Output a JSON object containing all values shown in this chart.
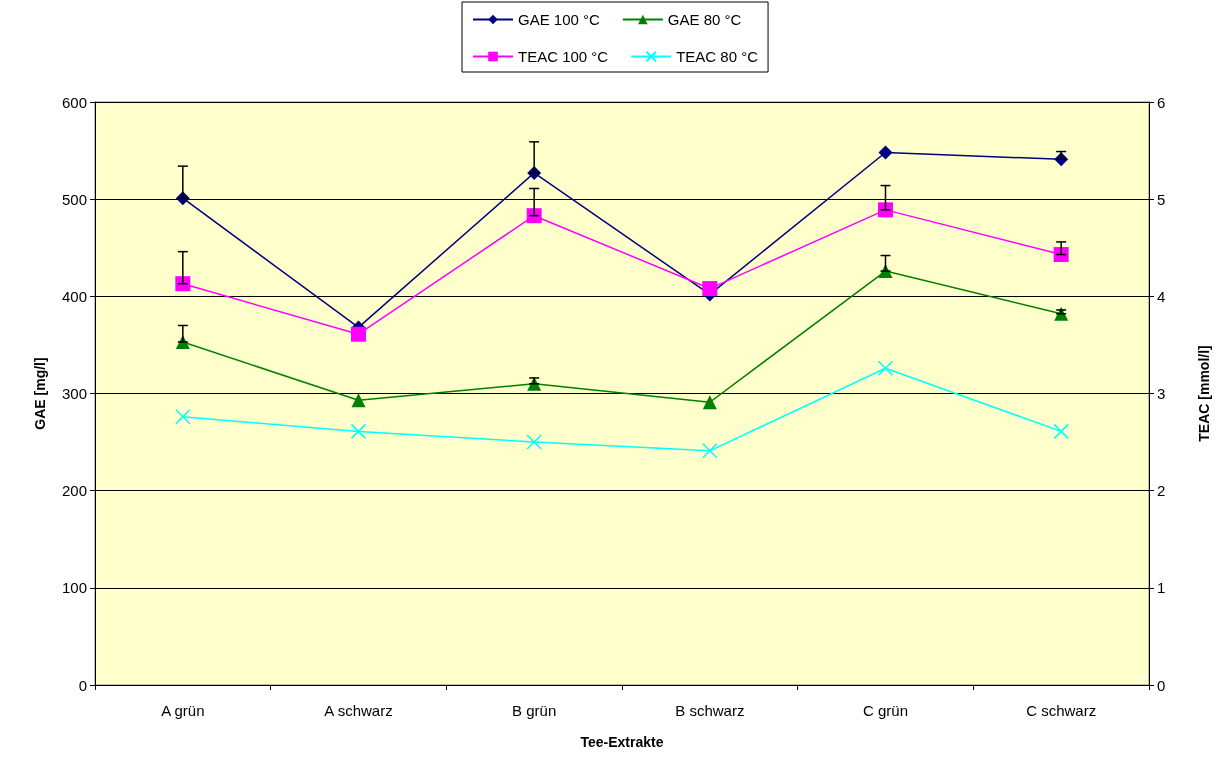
{
  "chart_data": {
    "type": "line",
    "xlabel": "Tee-Extrakte",
    "ylabel": "GAE [mg/l]",
    "y2label": "TEAC [mmol/l]",
    "categories": [
      "A grün",
      "A schwarz",
      "B grün",
      "B schwarz",
      "C grün",
      "C schwarz"
    ],
    "series": [
      {
        "name": "GAE 100 °C",
        "color": "#000080",
        "marker": "diamond",
        "values": [
          501,
          368,
          527,
          402,
          548,
          541
        ],
        "errors": [
          [
            501,
            534
          ],
          null,
          [
            527,
            559
          ],
          null,
          null,
          [
            541,
            549
          ]
        ]
      },
      {
        "name": "GAE 80 °C",
        "color": "#008000",
        "marker": "triangle",
        "values": [
          353,
          293,
          310,
          291,
          426,
          382
        ],
        "errors": [
          [
            353,
            370
          ],
          null,
          [
            310,
            316
          ],
          null,
          [
            426,
            442
          ],
          [
            382,
            386
          ]
        ]
      },
      {
        "name": "TEAC 100 °C",
        "color": "#ff00ff",
        "marker": "square",
        "axis": "y2",
        "values": [
          4.13,
          3.61,
          4.83,
          4.08,
          4.89,
          4.43
        ],
        "errors": [
          [
            4.13,
            4.46
          ],
          null,
          [
            4.83,
            5.11
          ],
          null,
          [
            4.89,
            5.14
          ],
          [
            4.43,
            4.56
          ]
        ]
      },
      {
        "name": "TEAC 80 °C",
        "color": "#00ffff",
        "marker": "cross",
        "axis": "y2",
        "values": [
          2.76,
          2.61,
          2.5,
          2.41,
          3.26,
          2.61
        ]
      }
    ],
    "ylim": [
      0,
      600
    ],
    "yticks": [
      0,
      100,
      200,
      300,
      400,
      500,
      600
    ],
    "y2lim": [
      0,
      6
    ],
    "y2ticks": [
      0,
      1,
      2,
      3,
      4,
      5,
      6
    ],
    "grid": "y",
    "legend": "top",
    "line_style": "solid"
  }
}
